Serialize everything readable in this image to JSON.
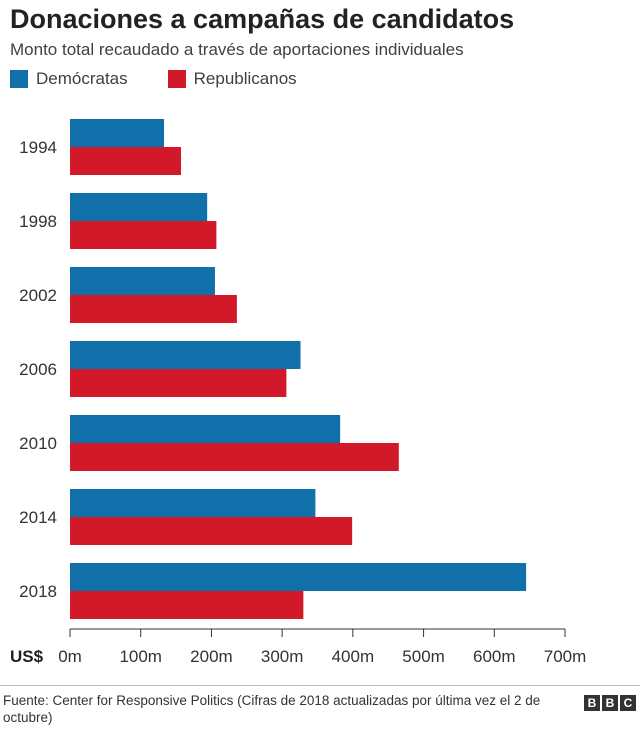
{
  "title": "Donaciones a campañas de candidatos",
  "subtitle": "Monto total recaudado a través de aportaciones individuales",
  "source": "Fuente: Center for Responsive Politics (Cifras de 2018 actualizadas por última vez el 2 de octubre)",
  "logo": [
    "B",
    "B",
    "C"
  ],
  "chart_data": {
    "type": "bar",
    "orientation": "horizontal",
    "categories": [
      "1994",
      "1998",
      "2002",
      "2006",
      "2010",
      "2014",
      "2018"
    ],
    "series": [
      {
        "name": "Demócratas",
        "color": "#1170aa",
        "values": [
          133,
          194,
          205,
          326,
          382,
          347,
          645
        ]
      },
      {
        "name": "Republicanos",
        "color": "#d1192a",
        "values": [
          157,
          207,
          236,
          306,
          465,
          399,
          330
        ]
      }
    ],
    "xlim": [
      0,
      700
    ],
    "ticks": [
      0,
      100,
      200,
      300,
      400,
      500,
      600,
      700
    ],
    "tick_labels": [
      "0m",
      "100m",
      "200m",
      "300m",
      "400m",
      "500m",
      "600m",
      "700m"
    ],
    "unit_label": "US$",
    "grid": false,
    "legend_position": "top-left"
  }
}
